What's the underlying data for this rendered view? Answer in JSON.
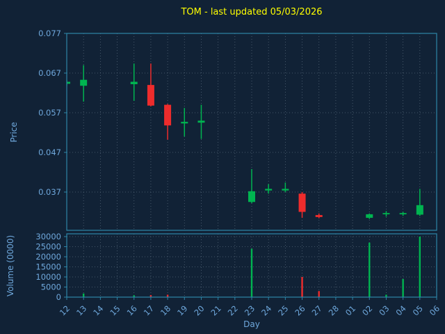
{
  "colors": {
    "background": "#112236",
    "title": "#ffff00",
    "axis_label": "#6fa8dc",
    "tick_label": "#6fa8dc",
    "spine": "#2d85a8",
    "grid": "#5c6e80",
    "up": "#00b450",
    "down": "#ee2c2c"
  },
  "chart_data": {
    "type": "candlestick",
    "title": "TOM - last updated 05/03/2026",
    "xlabel": "Day",
    "legend": "none",
    "grid": "dotted",
    "price_axis": {
      "label": "Price",
      "ticks": [
        0.037,
        0.047,
        0.057,
        0.067,
        0.077
      ],
      "range": [
        0.0275,
        0.077
      ]
    },
    "volume_axis": {
      "label": "Volume (0000)",
      "ticks": [
        0,
        5000,
        10000,
        15000,
        20000,
        25000,
        30000
      ],
      "range": [
        0,
        30500
      ]
    },
    "x_ticks": [
      "12",
      "13",
      "14",
      "15",
      "16",
      "17",
      "18",
      "19",
      "20",
      "21",
      "22",
      "23",
      "24",
      "25",
      "26",
      "27",
      "28",
      "01",
      "02",
      "03",
      "04",
      "05",
      "06"
    ],
    "candles": [
      {
        "day": "12",
        "open": 0.0643,
        "high": 0.0652,
        "low": 0.0638,
        "close": 0.0648,
        "volume": 0
      },
      {
        "day": "13",
        "open": 0.0638,
        "high": 0.069,
        "low": 0.0598,
        "close": 0.0653,
        "volume": 1800
      },
      {
        "day": "16",
        "open": 0.0642,
        "high": 0.0694,
        "low": 0.06,
        "close": 0.0648,
        "volume": 900
      },
      {
        "day": "17",
        "open": 0.064,
        "high": 0.0694,
        "low": 0.0586,
        "close": 0.0588,
        "volume": 1000
      },
      {
        "day": "18",
        "open": 0.059,
        "high": 0.0592,
        "low": 0.0502,
        "close": 0.0538,
        "volume": 1200
      },
      {
        "day": "19",
        "open": 0.0543,
        "high": 0.0582,
        "low": 0.051,
        "close": 0.0547,
        "volume": 0
      },
      {
        "day": "20",
        "open": 0.0545,
        "high": 0.059,
        "low": 0.0504,
        "close": 0.055,
        "volume": 0
      },
      {
        "day": "23",
        "open": 0.0345,
        "high": 0.0428,
        "low": 0.0342,
        "close": 0.0372,
        "volume": 24000
      },
      {
        "day": "24",
        "open": 0.0374,
        "high": 0.039,
        "low": 0.0366,
        "close": 0.0378,
        "volume": 0
      },
      {
        "day": "25",
        "open": 0.0374,
        "high": 0.0394,
        "low": 0.037,
        "close": 0.0378,
        "volume": 0
      },
      {
        "day": "26",
        "open": 0.0366,
        "high": 0.037,
        "low": 0.0305,
        "close": 0.032,
        "volume": 10000
      },
      {
        "day": "27",
        "open": 0.0312,
        "high": 0.0316,
        "low": 0.0304,
        "close": 0.0307,
        "volume": 3000
      },
      {
        "day": "02",
        "open": 0.0305,
        "high": 0.0316,
        "low": 0.0302,
        "close": 0.0314,
        "volume": 27000
      },
      {
        "day": "03",
        "open": 0.0314,
        "high": 0.0322,
        "low": 0.0308,
        "close": 0.0317,
        "volume": 1200
      },
      {
        "day": "04",
        "open": 0.0314,
        "high": 0.032,
        "low": 0.031,
        "close": 0.0317,
        "volume": 9000
      },
      {
        "day": "05",
        "open": 0.0313,
        "high": 0.0378,
        "low": 0.031,
        "close": 0.0337,
        "volume": 30000
      }
    ]
  }
}
